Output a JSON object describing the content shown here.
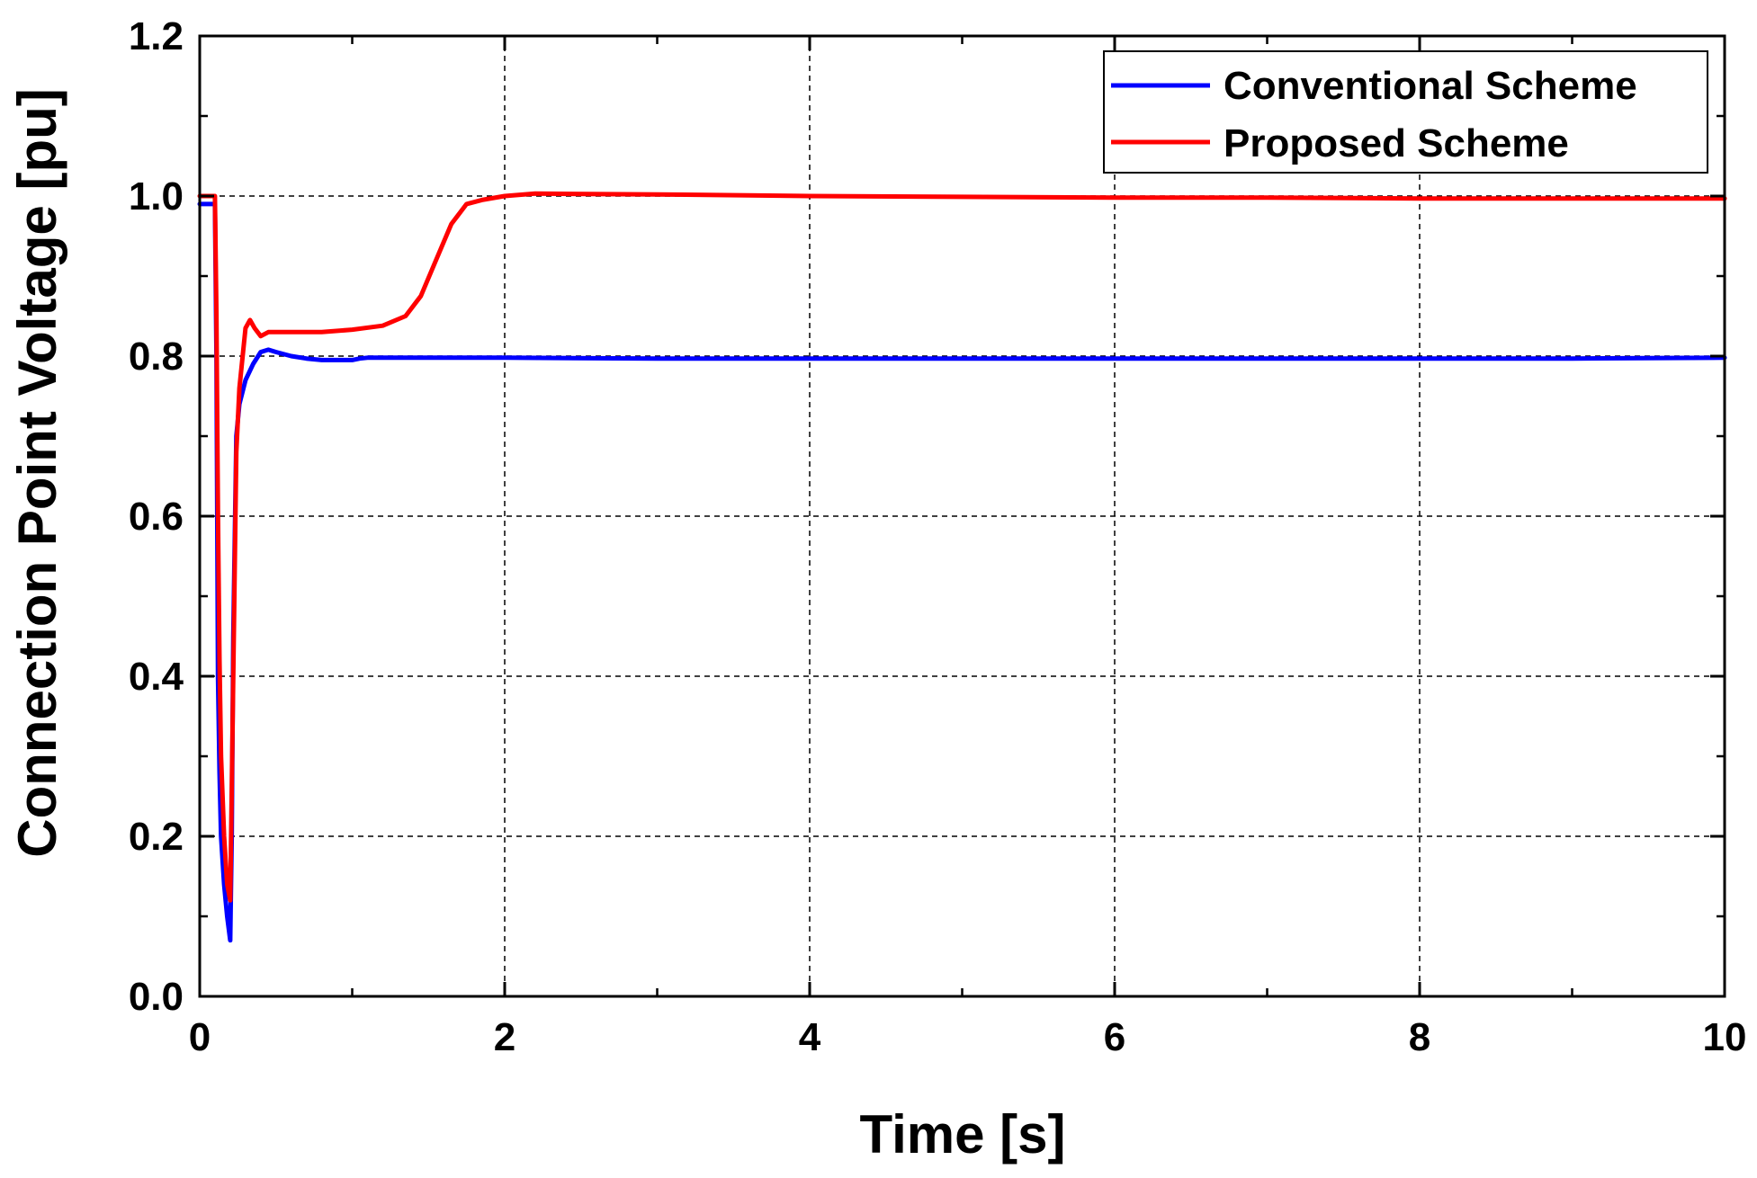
{
  "chart_data": {
    "type": "line",
    "title": "",
    "xlabel": "Time [s]",
    "ylabel": "Connection Point Voltage [pu]",
    "xlim": [
      0,
      10
    ],
    "ylim": [
      0,
      1.2
    ],
    "x_ticks": [
      "0",
      "2",
      "4",
      "6",
      "8",
      "10"
    ],
    "y_ticks": [
      "0.0",
      "0.2",
      "0.4",
      "0.6",
      "0.8",
      "1.0",
      "1.2"
    ],
    "grid": true,
    "legend_position": "top-right",
    "series": [
      {
        "name": "Conventional Scheme",
        "color": "#0000ff",
        "x": [
          0,
          0.1,
          0.11,
          0.12,
          0.13,
          0.14,
          0.16,
          0.18,
          0.2,
          0.21,
          0.22,
          0.24,
          0.26,
          0.3,
          0.35,
          0.4,
          0.45,
          0.5,
          0.6,
          0.7,
          0.8,
          0.9,
          1.0,
          1.05,
          1.1,
          1.5,
          2.0,
          3.0,
          4.0,
          5.0,
          6.0,
          7.0,
          8.0,
          9.0,
          10.0
        ],
        "y": [
          0.99,
          0.99,
          0.8,
          0.4,
          0.28,
          0.2,
          0.14,
          0.1,
          0.07,
          0.2,
          0.45,
          0.7,
          0.74,
          0.77,
          0.79,
          0.805,
          0.808,
          0.805,
          0.8,
          0.797,
          0.795,
          0.795,
          0.795,
          0.797,
          0.798,
          0.798,
          0.798,
          0.797,
          0.797,
          0.797,
          0.797,
          0.797,
          0.797,
          0.797,
          0.798
        ]
      },
      {
        "name": "Proposed Scheme",
        "color": "#ff0000",
        "x": [
          0,
          0.1,
          0.11,
          0.12,
          0.13,
          0.14,
          0.16,
          0.18,
          0.2,
          0.22,
          0.24,
          0.26,
          0.3,
          0.33,
          0.36,
          0.4,
          0.45,
          0.5,
          0.6,
          0.8,
          1.0,
          1.2,
          1.35,
          1.45,
          1.55,
          1.65,
          1.75,
          1.85,
          2.0,
          2.2,
          3.0,
          4.0,
          5.0,
          6.0,
          7.0,
          8.0,
          9.0,
          10.0
        ],
        "y": [
          1.0,
          1.0,
          0.85,
          0.6,
          0.42,
          0.3,
          0.2,
          0.14,
          0.12,
          0.4,
          0.68,
          0.76,
          0.835,
          0.845,
          0.835,
          0.825,
          0.83,
          0.83,
          0.83,
          0.83,
          0.833,
          0.838,
          0.85,
          0.875,
          0.92,
          0.965,
          0.99,
          0.995,
          1.0,
          1.003,
          1.002,
          1.0,
          0.999,
          0.998,
          0.998,
          0.997,
          0.997,
          0.997
        ]
      }
    ]
  }
}
